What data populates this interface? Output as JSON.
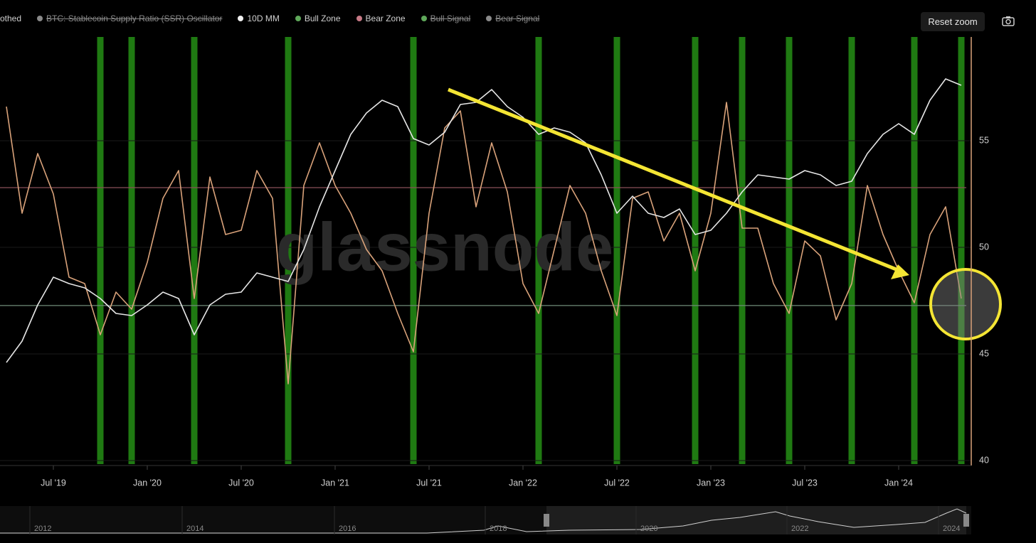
{
  "chart_data": {
    "type": "line",
    "watermark": "glassnode",
    "reset_zoom": "Reset zoom",
    "legend": [
      {
        "name": "othed",
        "color": "#d9a27a",
        "hidden": false
      },
      {
        "name": "BTC: Stablecoin Supply Ratio (SSR) Oscillator",
        "color": "#8a8a8a",
        "hidden": true
      },
      {
        "name": "10D MM",
        "color": "#f0f0f0",
        "hidden": false
      },
      {
        "name": "Bull Zone",
        "color": "#5fa85a",
        "hidden": false
      },
      {
        "name": "Bear Zone",
        "color": "#c77a86",
        "hidden": false
      },
      {
        "name": "Bull Signal",
        "color": "#5fa85a",
        "hidden": true
      },
      {
        "name": "Bear Signal",
        "color": "#8a8a8a",
        "hidden": true
      }
    ],
    "x": [
      "2019-04",
      "2019-05",
      "2019-06",
      "2019-07",
      "2019-08",
      "2019-09",
      "2019-10",
      "2019-11",
      "2019-12",
      "2020-01",
      "2020-02",
      "2020-03",
      "2020-04",
      "2020-05",
      "2020-06",
      "2020-07",
      "2020-08",
      "2020-09",
      "2020-10",
      "2020-11",
      "2020-12",
      "2021-01",
      "2021-02",
      "2021-03",
      "2021-04",
      "2021-05",
      "2021-06",
      "2021-07",
      "2021-08",
      "2021-09",
      "2021-10",
      "2021-11",
      "2021-12",
      "2022-01",
      "2022-02",
      "2022-03",
      "2022-04",
      "2022-05",
      "2022-06",
      "2022-07",
      "2022-08",
      "2022-09",
      "2022-10",
      "2022-11",
      "2022-12",
      "2023-01",
      "2023-02",
      "2023-03",
      "2023-04",
      "2023-05",
      "2023-06",
      "2023-07",
      "2023-08",
      "2023-09",
      "2023-10",
      "2023-11",
      "2023-12",
      "2024-01",
      "2024-02",
      "2024-03",
      "2024-04",
      "2024-05"
    ],
    "series": [
      {
        "color": "#d9a27a",
        "values": [
          56.6,
          51.6,
          54.4,
          52.5,
          48.6,
          48.3,
          45.9,
          47.9,
          47.1,
          49.3,
          52.3,
          53.6,
          47.6,
          53.3,
          50.6,
          50.8,
          53.6,
          52.3,
          43.6,
          52.9,
          54.9,
          52.9,
          51.6,
          49.9,
          48.9,
          46.9,
          45.1,
          51.6,
          55.6,
          56.4,
          51.9,
          54.9,
          52.6,
          48.3,
          46.9,
          49.9,
          52.9,
          51.6,
          48.9,
          46.8,
          52.3,
          52.6,
          50.3,
          51.6,
          48.9,
          51.6,
          56.8,
          50.9,
          50.9,
          48.3,
          46.9,
          50.3,
          49.6,
          46.6,
          48.3,
          52.9,
          50.6,
          48.9,
          47.4,
          50.6,
          51.9,
          47.6
        ]
      },
      {
        "color": "#e6e6e6",
        "values": [
          44.6,
          45.6,
          47.3,
          48.6,
          48.3,
          48.1,
          47.6,
          46.9,
          46.8,
          47.3,
          47.9,
          47.6,
          45.9,
          47.3,
          47.8,
          47.9,
          48.8,
          48.6,
          48.4,
          49.9,
          51.9,
          53.6,
          55.3,
          56.3,
          56.9,
          56.6,
          55.1,
          54.8,
          55.4,
          56.7,
          56.8,
          57.4,
          56.6,
          56.1,
          55.3,
          55.6,
          55.4,
          54.9,
          53.4,
          51.6,
          52.4,
          51.6,
          51.4,
          51.8,
          50.6,
          50.8,
          51.6,
          52.6,
          53.4,
          53.3,
          53.2,
          53.6,
          53.4,
          52.9,
          53.1,
          54.4,
          55.3,
          55.8,
          55.3,
          56.9,
          57.9,
          57.6
        ]
      }
    ],
    "bull_signal_periods": [
      "2019-10",
      "2019-12",
      "2020-04",
      "2020-10",
      "2021-06",
      "2022-02",
      "2022-07",
      "2022-12",
      "2023-03",
      "2023-06",
      "2023-10",
      "2024-02",
      "2024-05"
    ],
    "bull_signal_color": "#1f7a12",
    "thresholds": [
      {
        "value": 52.8,
        "color": "#8a4f58"
      },
      {
        "value": 47.27,
        "color": "#6f8a78"
      }
    ],
    "xlim": [
      "2019-04",
      "2024-05"
    ],
    "xticks": [
      {
        "value": "2019-07",
        "label": "Jul '19"
      },
      {
        "value": "2020-01",
        "label": "Jan '20"
      },
      {
        "value": "2020-07",
        "label": "Jul '20"
      },
      {
        "value": "2021-01",
        "label": "Jan '21"
      },
      {
        "value": "2021-07",
        "label": "Jul '21"
      },
      {
        "value": "2022-01",
        "label": "Jan '22"
      },
      {
        "value": "2022-07",
        "label": "Jul '22"
      },
      {
        "value": "2023-01",
        "label": "Jan '23"
      },
      {
        "value": "2023-07",
        "label": "Jul '23"
      },
      {
        "value": "2024-01",
        "label": "Jan '24"
      }
    ],
    "ylim": [
      40,
      60
    ],
    "yticks": [
      40,
      45,
      50,
      55
    ],
    "grid": true,
    "navigator_labels": [
      "2012",
      "2014",
      "2016",
      "2018",
      "2020",
      "2022",
      "2024"
    ]
  }
}
